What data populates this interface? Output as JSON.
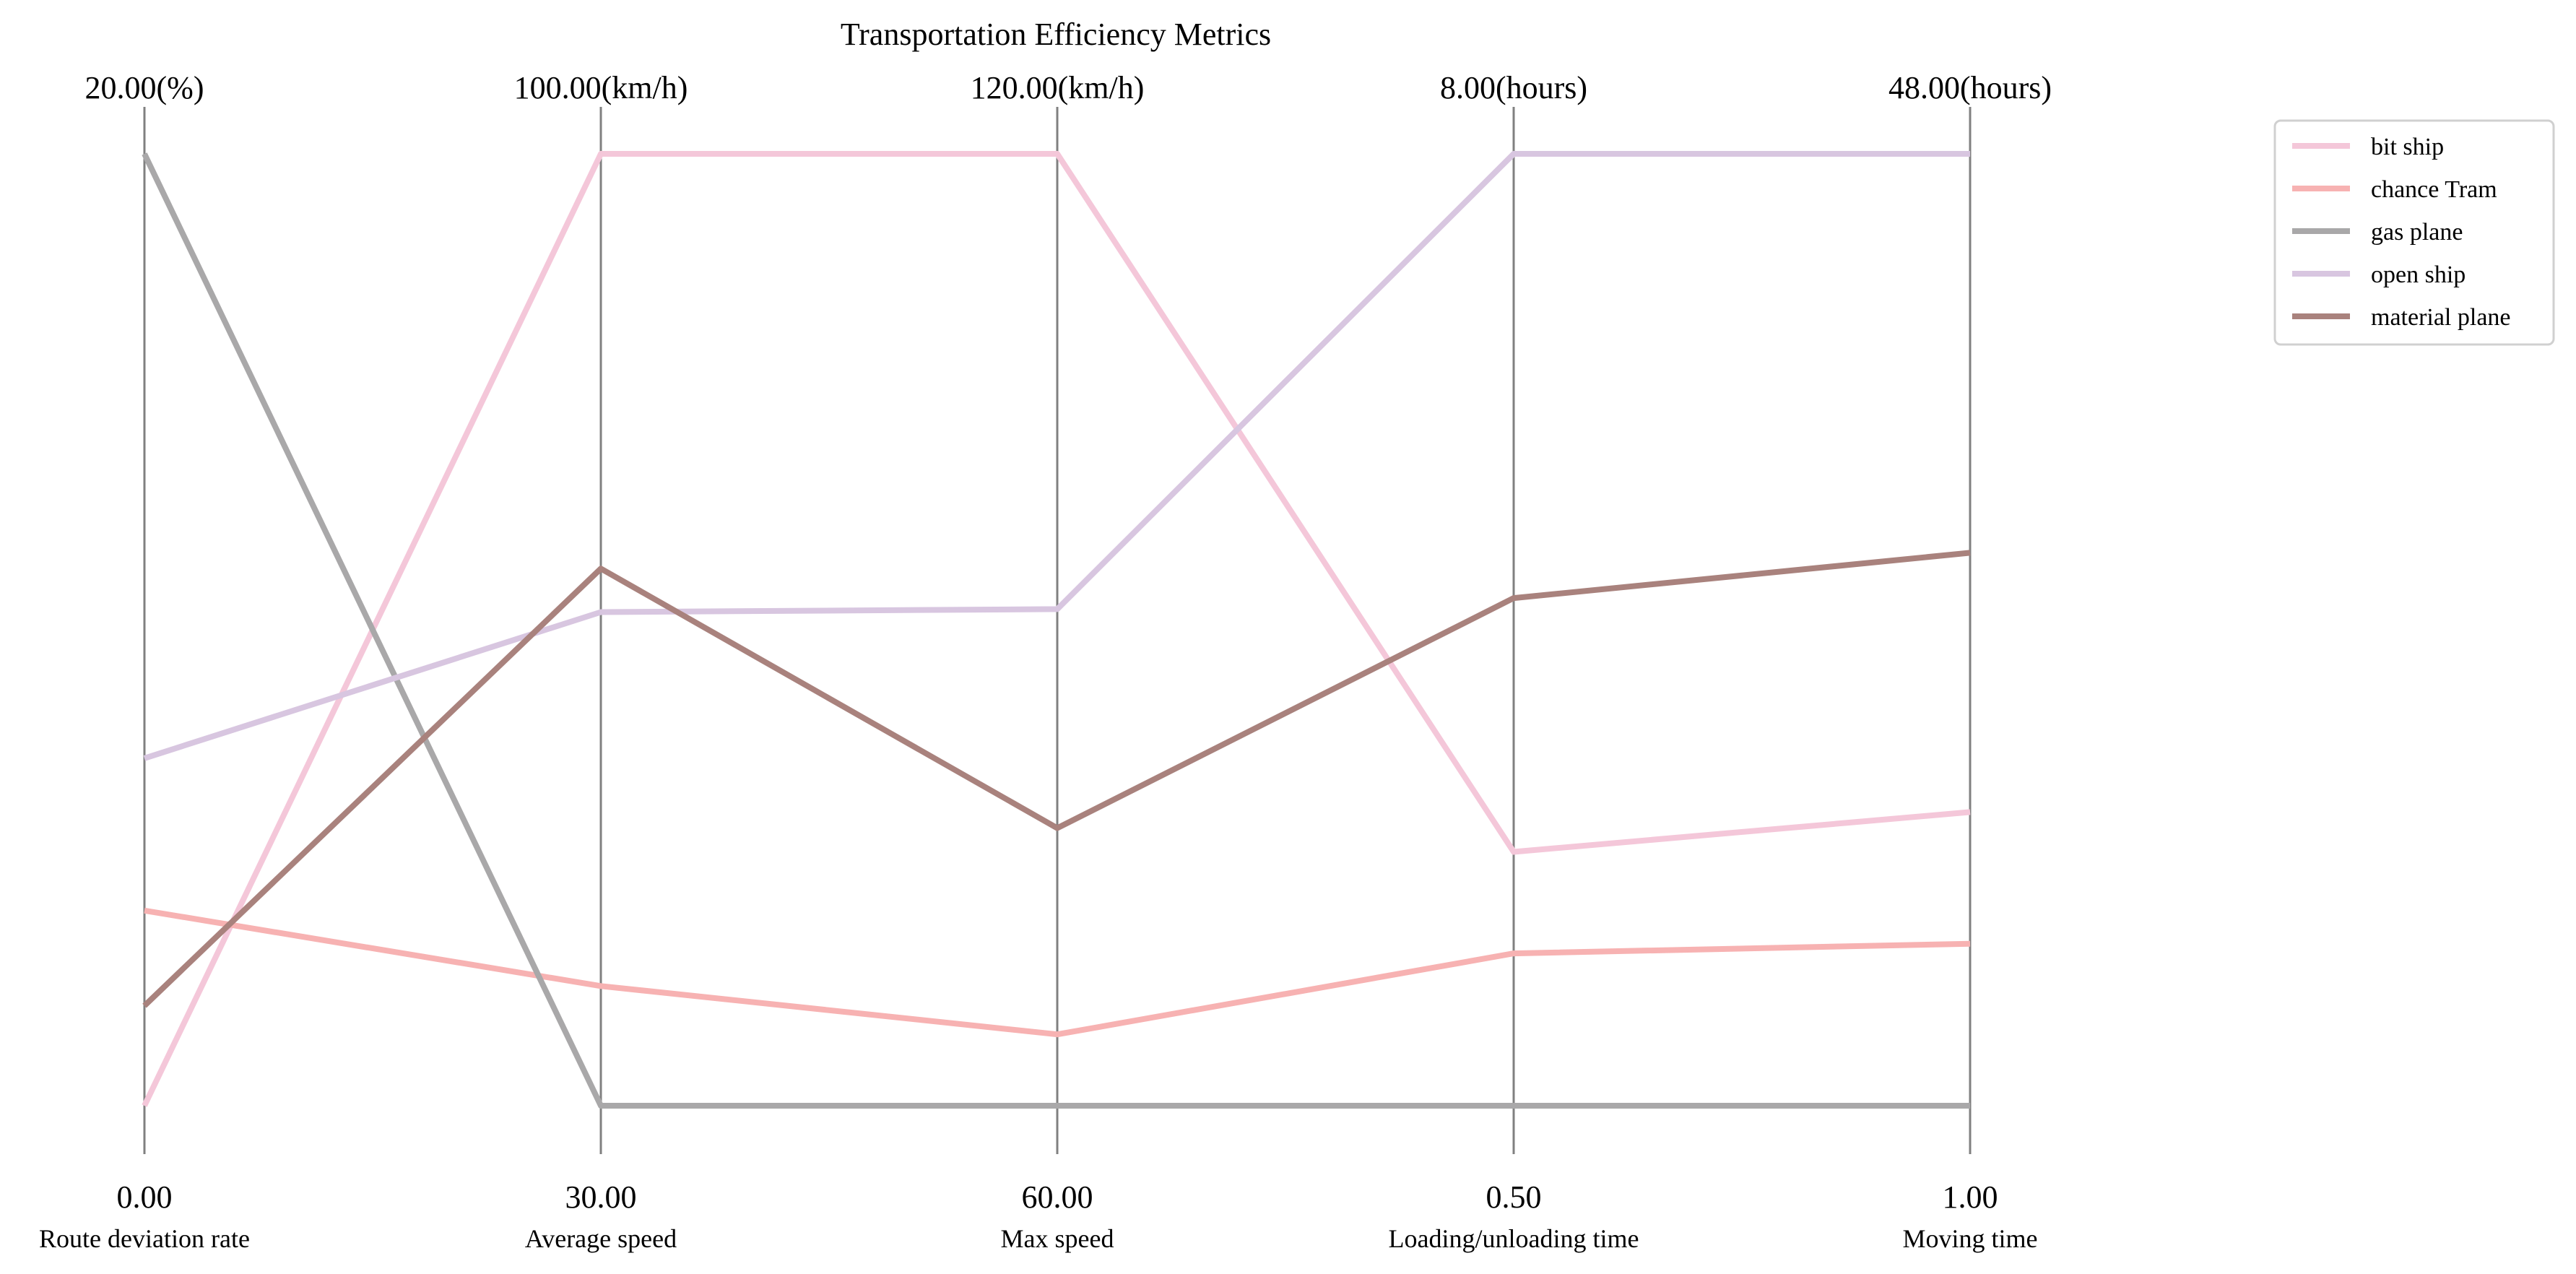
{
  "chart_data": {
    "type": "parallel_coordinates",
    "title": "Transportation Efficiency Metrics",
    "axes": [
      {
        "label": "Route deviation rate",
        "min": 0.0,
        "max": 20.0,
        "min_label": "0.00",
        "max_label": "20.00(%)"
      },
      {
        "label": "Average speed",
        "min": 30.0,
        "max": 100.0,
        "min_label": "30.00",
        "max_label": "100.00(km/h)"
      },
      {
        "label": "Max speed",
        "min": 60.0,
        "max": 120.0,
        "min_label": "60.00",
        "max_label": "120.00(km/h)"
      },
      {
        "label": "Loading/unloading time",
        "min": 0.5,
        "max": 8.0,
        "min_label": "0.50",
        "max_label": "8.00(hours)"
      },
      {
        "label": "Moving time",
        "min": 1.0,
        "max": 48.0,
        "min_label": "1.00",
        "max_label": "48.00(hours)"
      }
    ],
    "series": [
      {
        "name": "bit ship",
        "color": "#f4c7d9",
        "values": [
          0.0,
          100.0,
          120.0,
          2.5,
          15.5
        ]
      },
      {
        "name": "chance Tram",
        "color": "#f7b2b2",
        "values": [
          4.1,
          38.8,
          64.5,
          1.7,
          9.0
        ]
      },
      {
        "name": "gas plane",
        "color": "#a9a8a9",
        "values": [
          20.0,
          30.0,
          60.0,
          0.5,
          1.0
        ]
      },
      {
        "name": "open ship",
        "color": "#d8c6e0",
        "values": [
          7.3,
          66.3,
          91.3,
          8.0,
          48.0
        ]
      },
      {
        "name": "material plane",
        "color": "#a9827d",
        "values": [
          2.1,
          69.5,
          77.5,
          4.5,
          28.3
        ]
      }
    ],
    "legend_position": "top-right",
    "grid": false
  }
}
